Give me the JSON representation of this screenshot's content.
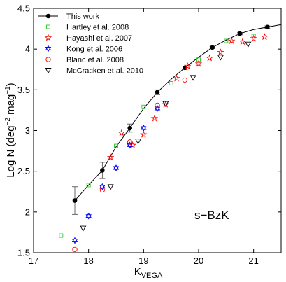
{
  "chart_data": {
    "type": "scatter",
    "title": "",
    "xlabel": {
      "main": "K",
      "sub": "VEGA"
    },
    "ylabel": {
      "main": "Log N (deg",
      "sup1": "−2",
      "mid": " mag",
      "sup2": "−1",
      "end": ")"
    },
    "xlim": [
      17,
      21.5
    ],
    "ylim": [
      1.5,
      4.5
    ],
    "xticks": [
      17,
      18,
      19,
      20,
      21
    ],
    "yticks": [
      1.5,
      2,
      2.5,
      3,
      3.5,
      4,
      4.5
    ],
    "xtick_labels": [
      "17",
      "18",
      "19",
      "20",
      "21"
    ],
    "ytick_labels": [
      "1.5",
      "2",
      "2.5",
      "3",
      "3.5",
      "4",
      "4.5"
    ],
    "grid": false,
    "legend_position": "top-left",
    "annotation": "s−BzK",
    "fit_curve": {
      "x": [
        17.75,
        18.0,
        18.25,
        18.5,
        18.75,
        19.0,
        19.25,
        19.5,
        19.75,
        20.0,
        20.25,
        20.5,
        20.75,
        21.0,
        21.25,
        21.5
      ],
      "y": [
        2.14,
        2.33,
        2.51,
        2.8,
        3.03,
        3.27,
        3.47,
        3.63,
        3.77,
        3.9,
        4.02,
        4.11,
        4.19,
        4.24,
        4.27,
        4.3
      ]
    },
    "series": [
      {
        "name": "This work",
        "marker": "filled-circle",
        "color": "#000000",
        "x": [
          17.75,
          18.25,
          18.75,
          19.25,
          19.75,
          20.25,
          20.75,
          21.25
        ],
        "y": [
          2.14,
          2.51,
          3.03,
          3.47,
          3.77,
          4.02,
          4.19,
          4.27
        ],
        "yerr": [
          0.17,
          0.1,
          0.05,
          0.03,
          0.02,
          0.015,
          0.015,
          0.015
        ]
      },
      {
        "name": "Hartley et al. 2008",
        "marker": "square",
        "color": "#22cc22",
        "x": [
          17.5,
          18.0,
          18.5,
          19.0,
          19.5,
          20.0,
          20.5,
          21.0
        ],
        "y": [
          1.71,
          2.33,
          2.81,
          3.29,
          3.58,
          3.87,
          4.1,
          4.16
        ]
      },
      {
        "name": "Hayashi et al. 2007",
        "marker": "pentagram",
        "color": "#ff0000",
        "x": [
          18.4,
          18.6,
          18.8,
          19.0,
          19.2,
          19.4,
          19.6,
          19.8,
          20.0,
          20.2,
          20.4,
          20.6,
          20.8,
          21.0,
          21.2
        ],
        "y": [
          2.67,
          2.97,
          2.82,
          2.95,
          3.15,
          3.32,
          3.64,
          3.79,
          3.82,
          3.89,
          3.96,
          4.1,
          4.09,
          4.13,
          4.15
        ]
      },
      {
        "name": "Kong et al. 2006",
        "marker": "hexagram",
        "color": "#0000ff",
        "x": [
          17.75,
          18.0,
          18.25,
          18.5,
          18.75,
          19.0,
          19.25
        ],
        "y": [
          1.65,
          1.95,
          2.31,
          2.54,
          2.82,
          3.03,
          3.27
        ]
      },
      {
        "name": "Blanc et al. 2008",
        "marker": "open-circle",
        "color": "#ff0000",
        "x": [
          17.75,
          18.25,
          18.75,
          19.25,
          19.75
        ],
        "y": [
          1.54,
          2.27,
          2.86,
          3.31,
          3.62
        ]
      },
      {
        "name": "McCracken et al. 2010",
        "marker": "down-triangle",
        "color": "#000000",
        "x": [
          17.9,
          18.4,
          18.9,
          19.4,
          19.9,
          20.4,
          20.9
        ],
        "y": [
          1.8,
          2.31,
          2.87,
          3.33,
          3.65,
          3.9,
          4.06
        ]
      }
    ]
  }
}
